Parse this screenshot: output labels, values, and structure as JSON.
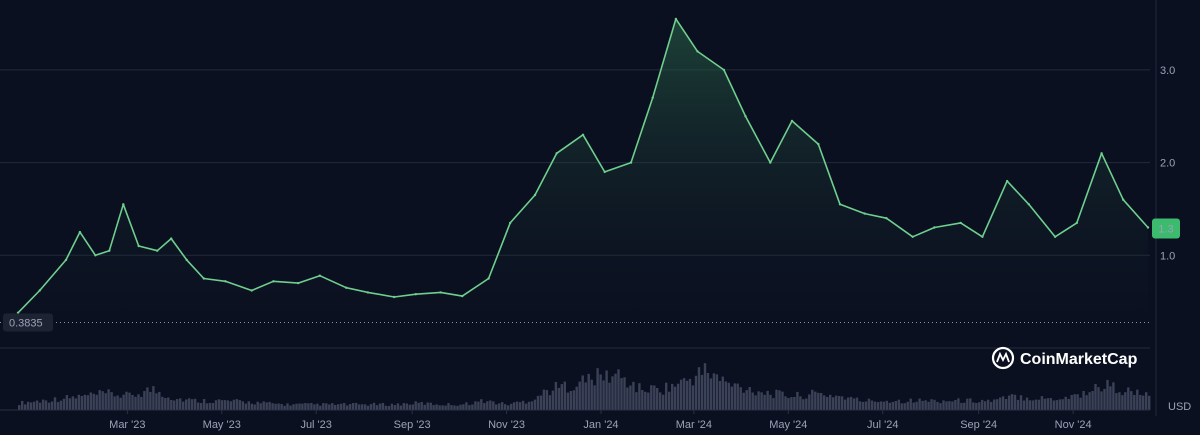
{
  "chart_data": {
    "type": "area",
    "title": "",
    "xlabel": "",
    "ylabel": "",
    "currency_label": "USD",
    "brand": "CoinMarketCap",
    "x_tick_labels": [
      "Mar '23",
      "May '23",
      "Jul '23",
      "Sep '23",
      "Nov '23",
      "Jan '24",
      "Mar '24",
      "May '24",
      "Jul '24",
      "Sep '24",
      "Nov '24"
    ],
    "y_tick_labels": [
      "1.0",
      "2.0",
      "3.0"
    ],
    "ylim": [
      0.0,
      3.7
    ],
    "grid": true,
    "current_price_label": "1.3",
    "baseline_label": "0.3835",
    "baseline_value": 0.3835,
    "colors": {
      "line": "#6fcf8e",
      "area_top": "#1f4a35",
      "badge": "#3cba6e",
      "volume": "#3b4157"
    },
    "series": [
      {
        "x": [
          "2023-01-01",
          "2023-01-15",
          "2023-02-01",
          "2023-02-10",
          "2023-02-20",
          "2023-03-01",
          "2023-03-10",
          "2023-03-20",
          "2023-04-01",
          "2023-04-10",
          "2023-04-20",
          "2023-05-01",
          "2023-05-15",
          "2023-06-01",
          "2023-06-15",
          "2023-07-01",
          "2023-07-15",
          "2023-08-01",
          "2023-08-15",
          "2023-09-01",
          "2023-09-15",
          "2023-10-01",
          "2023-10-15",
          "2023-11-01",
          "2023-11-15",
          "2023-12-01",
          "2023-12-15",
          "2024-01-01",
          "2024-01-15",
          "2024-02-01",
          "2024-02-15",
          "2024-03-01",
          "2024-03-15",
          "2024-04-01",
          "2024-04-15",
          "2024-05-01",
          "2024-05-15",
          "2024-06-01",
          "2024-06-15",
          "2024-07-01",
          "2024-07-15",
          "2024-08-01",
          "2024-08-15",
          "2024-09-01",
          "2024-09-15",
          "2024-10-01",
          "2024-10-15",
          "2024-11-01",
          "2024-11-15",
          "2024-12-01",
          "2024-12-15",
          "2024-12-31"
        ],
        "values": [
          0.38,
          0.62,
          0.95,
          1.25,
          1.0,
          1.05,
          1.55,
          1.1,
          1.05,
          1.18,
          0.95,
          0.75,
          0.72,
          0.62,
          0.72,
          0.7,
          0.78,
          0.65,
          0.6,
          0.55,
          0.58,
          0.6,
          0.56,
          0.75,
          1.35,
          1.65,
          2.1,
          2.3,
          1.9,
          2.0,
          2.7,
          3.55,
          3.2,
          3.0,
          2.5,
          2.0,
          2.45,
          2.2,
          1.55,
          1.45,
          1.4,
          1.2,
          1.3,
          1.35,
          1.2,
          1.8,
          1.55,
          1.2,
          1.35,
          2.1,
          1.6,
          1.3
        ]
      }
    ],
    "volume": {
      "values": [
        0.15,
        0.2,
        0.25,
        0.3,
        0.35,
        0.3,
        0.45,
        0.25,
        0.2,
        0.2,
        0.18,
        0.15,
        0.12,
        0.12,
        0.12,
        0.12,
        0.12,
        0.12,
        0.15,
        0.12,
        0.12,
        0.2,
        0.12,
        0.2,
        0.45,
        0.55,
        0.7,
        0.75,
        0.45,
        0.45,
        0.6,
        0.85,
        0.55,
        0.45,
        0.35,
        0.3,
        0.35,
        0.3,
        0.2,
        0.2,
        0.2,
        0.2,
        0.2,
        0.2,
        0.2,
        0.3,
        0.25,
        0.25,
        0.35,
        0.55,
        0.4,
        0.3
      ],
      "max": 1.0
    }
  }
}
